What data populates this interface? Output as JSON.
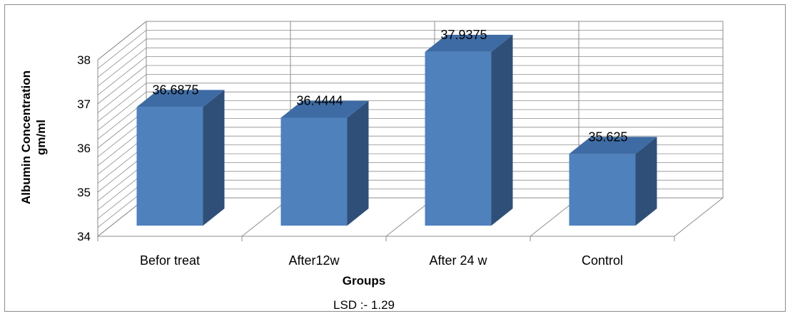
{
  "chart_data": {
    "type": "bar",
    "style": "3d-column",
    "categories": [
      "Befor treat",
      "After12w",
      "After 24 w",
      "Control"
    ],
    "values": [
      36.6875,
      36.4444,
      37.9375,
      35.625
    ],
    "data_labels": [
      "36.6875",
      "36.4444",
      "37.9375",
      "35.625"
    ],
    "title": "",
    "xlabel": "Groups",
    "ylabel_line1": "Albumin Concentration",
    "ylabel_line2": "gm/ml",
    "ylim": [
      34,
      38
    ],
    "yticks": [
      "34",
      "35",
      "36",
      "37",
      "38"
    ],
    "grid": true,
    "legend": "none",
    "note": "LSD  :-  1.29",
    "colors": {
      "bar_front": "#4f81bd",
      "bar_side": "#2f4f78",
      "bar_top": "#3e6ba3",
      "gridline": "#8c8c8c"
    }
  }
}
